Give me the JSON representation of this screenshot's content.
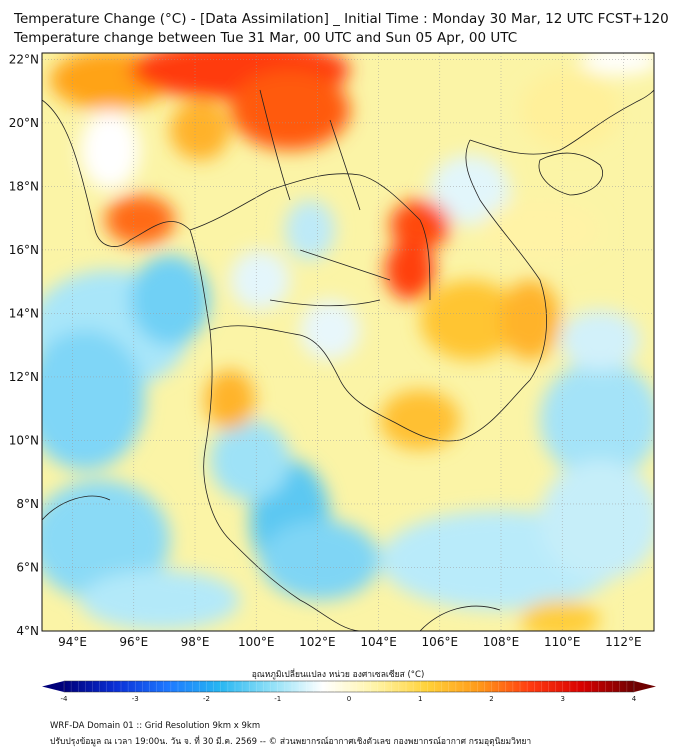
{
  "header": {
    "title_line1": "Temperature Change (°C) - [Data Assimilation] _ Initial Time : Monday 30 Mar, 12 UTC FCST+120",
    "title_line2": "Temperature change between Tue 31 Mar, 00 UTC and Sun 05 Apr, 00 UTC"
  },
  "map": {
    "lat_labels": [
      "22°N",
      "20°N",
      "18°N",
      "16°N",
      "14°N",
      "12°N",
      "10°N",
      "8°N",
      "6°N",
      "4°N"
    ],
    "lat_values": [
      22,
      20,
      18,
      16,
      14,
      12,
      10,
      8,
      6,
      4
    ],
    "lon_labels": [
      "94°E",
      "96°E",
      "98°E",
      "100°E",
      "102°E",
      "104°E",
      "106°E",
      "108°E",
      "110°E",
      "112°E"
    ],
    "lon_values": [
      94,
      96,
      98,
      100,
      102,
      104,
      106,
      108,
      110,
      112
    ],
    "lon_range": [
      93,
      113
    ],
    "lat_range": [
      4,
      22.2
    ]
  },
  "colorbar": {
    "title": "อุณหภูมิเปลี่ยนแปลง หน่วย องศาเซลเซียส (°C)",
    "tick_labels": [
      "-4",
      "-3",
      "-2",
      "-1",
      "0",
      "1",
      "2",
      "3",
      "4"
    ],
    "range": [
      -4,
      4
    ],
    "colors": [
      "#00007a",
      "#0a2fd6",
      "#1e78ff",
      "#27b6f2",
      "#8fe0f7",
      "#ffffff",
      "#fff4a8",
      "#ffd23a",
      "#ff9a1a",
      "#ff3b10",
      "#d80000",
      "#6e0000"
    ]
  },
  "footer": {
    "line1": "WRF-DA Domain 01 :: Grid Resolution 9km x 9km",
    "line2": "ปรับปรุงข้อมูล ณ เวลา 19:00น. วัน จ. ที่ 30 มี.ค. 2569 -- © ส่วนพยากรณ์อากาศเชิงตัวเลข กองพยากรณ์อากาศ กรมอุตุนิยมวิทยา"
  }
}
